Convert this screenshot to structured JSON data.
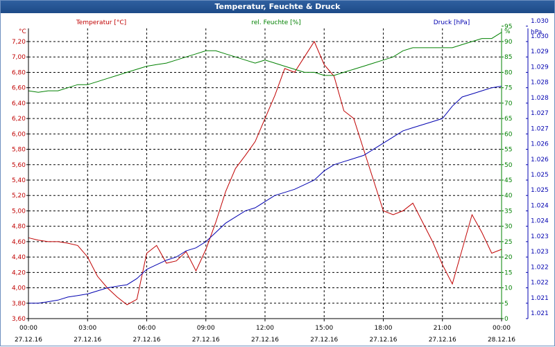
{
  "window": {
    "title": "Temperatur, Feuchte & Druck"
  },
  "colors": {
    "temp": "#c00000",
    "humidity": "#008000",
    "pressure": "#0000b0",
    "grid": "#000000"
  },
  "chart_data": {
    "type": "line",
    "grid": true,
    "x_ticks": [
      {
        "time": "00:00",
        "date": "27.12.16"
      },
      {
        "time": "03:00",
        "date": "27.12.16"
      },
      {
        "time": "06:00",
        "date": "27.12.16"
      },
      {
        "time": "09:00",
        "date": "27.12.16"
      },
      {
        "time": "12:00",
        "date": "27.12.16"
      },
      {
        "time": "15:00",
        "date": "27.12.16"
      },
      {
        "time": "18:00",
        "date": "27.12.16"
      },
      {
        "time": "21:00",
        "date": "27.12.16"
      },
      {
        "time": "00:00",
        "date": "28.12.16"
      }
    ],
    "axes": {
      "temp": {
        "label": "Temperatur [°C]",
        "unit": "°C",
        "range": [
          3.6,
          7.4
        ],
        "ticks": [
          "3,60",
          "3,80",
          "4,00",
          "4,20",
          "4,40",
          "4,60",
          "4,80",
          "5,00",
          "5,20",
          "5,40",
          "5,60",
          "5,80",
          "6,00",
          "6,20",
          "6,40",
          "6,60",
          "6,80",
          "7,00",
          "7,20"
        ]
      },
      "humidity": {
        "label": "rel. Feuchte [%]",
        "unit": "%",
        "range": [
          0,
          95
        ],
        "ticks": [
          "0",
          "5",
          "10",
          "15",
          "20",
          "25",
          "30",
          "35",
          "40",
          "45",
          "50",
          "55",
          "60",
          "65",
          "70",
          "75",
          "80",
          "85",
          "90",
          "95"
        ]
      },
      "pressure": {
        "label": "Druck [hPa]",
        "unit": "hPa",
        "ticks": [
          "1.021",
          "1.021",
          "1.022",
          "1.022",
          "1.023",
          "1.023",
          "1.024",
          "1.024",
          "1.025",
          "1.025",
          "1.026",
          "1.026",
          "1.027",
          "1.027",
          "1.028",
          "1.028",
          "1.029",
          "1.029",
          "1.030",
          "1.030"
        ]
      }
    },
    "series": [
      {
        "name": "Temperatur [°C]",
        "axis": "temp",
        "x": [
          0,
          0.5,
          1,
          1.5,
          2,
          2.5,
          3,
          3.5,
          4,
          4.5,
          5,
          5.5,
          6,
          6.5,
          7,
          7.5,
          8,
          8.5,
          9,
          9.5,
          10,
          10.5,
          11,
          11.5,
          12,
          12.5,
          13,
          13.5,
          14,
          14.5,
          15,
          15.5,
          16,
          16.5,
          17,
          17.5,
          18,
          18.5,
          19,
          19.5,
          20,
          20.5,
          21,
          21.5,
          22,
          22.5,
          23,
          23.5,
          24
        ],
        "values": [
          4.65,
          4.62,
          4.6,
          4.6,
          4.58,
          4.55,
          4.4,
          4.15,
          4.0,
          3.88,
          3.78,
          3.85,
          4.45,
          4.55,
          4.32,
          4.35,
          4.47,
          4.22,
          4.5,
          4.85,
          5.25,
          5.55,
          5.72,
          5.9,
          6.2,
          6.5,
          6.85,
          6.8,
          7.0,
          7.2,
          6.9,
          6.75,
          6.3,
          6.2,
          5.8,
          5.4,
          5.0,
          4.95,
          5.0,
          5.1,
          4.85,
          4.6,
          4.3,
          4.05,
          4.5,
          4.95,
          4.72,
          4.45,
          4.5
        ]
      },
      {
        "name": "rel. Feuchte [%]",
        "axis": "humidity",
        "x": [
          0,
          0.5,
          1,
          1.5,
          2,
          2.5,
          3,
          3.5,
          4,
          4.5,
          5,
          5.5,
          6,
          6.5,
          7,
          7.5,
          8,
          8.5,
          9,
          9.5,
          10,
          10.5,
          11,
          11.5,
          12,
          12.5,
          13,
          13.5,
          14,
          14.5,
          15,
          15.5,
          16,
          16.5,
          17,
          17.5,
          18,
          18.5,
          19,
          19.5,
          20,
          20.5,
          21,
          21.5,
          22,
          22.5,
          23,
          23.5,
          24
        ],
        "values": [
          74,
          73.5,
          74,
          74,
          75,
          76,
          76,
          77,
          78,
          79,
          80,
          81,
          82,
          82.5,
          83,
          84,
          85,
          86,
          87,
          87,
          86,
          85,
          84,
          83,
          84,
          83,
          82,
          81,
          80,
          80,
          79,
          79,
          80,
          81,
          82,
          83,
          84,
          85,
          87,
          88,
          88,
          88,
          88,
          88,
          89,
          90,
          91,
          91,
          93
        ]
      },
      {
        "name": "Druck [hPa]",
        "axis": "pressure",
        "x": [
          0,
          0.5,
          1,
          1.5,
          2,
          2.5,
          3,
          3.5,
          4,
          4.5,
          5,
          5.5,
          6,
          6.5,
          7,
          7.5,
          8,
          8.5,
          9,
          9.5,
          10,
          10.5,
          11,
          11.5,
          12,
          12.5,
          13,
          13.5,
          14,
          14.5,
          15,
          15.5,
          16,
          16.5,
          17,
          17.5,
          18,
          18.5,
          19,
          19.5,
          20,
          20.5,
          21,
          21.5,
          22,
          22.5,
          23,
          23.5,
          24
        ],
        "values": [
          5,
          5,
          5.5,
          6,
          7,
          7.5,
          8,
          9,
          10,
          10.5,
          11,
          13,
          16,
          17.5,
          19,
          20,
          22,
          23,
          25,
          28,
          31,
          33,
          35,
          36,
          38,
          40,
          41,
          42,
          43.5,
          45,
          48,
          50,
          51,
          52,
          53,
          55,
          57,
          59,
          61,
          62,
          63,
          64,
          65,
          69,
          72,
          73,
          74,
          75,
          75.5
        ]
      }
    ]
  }
}
